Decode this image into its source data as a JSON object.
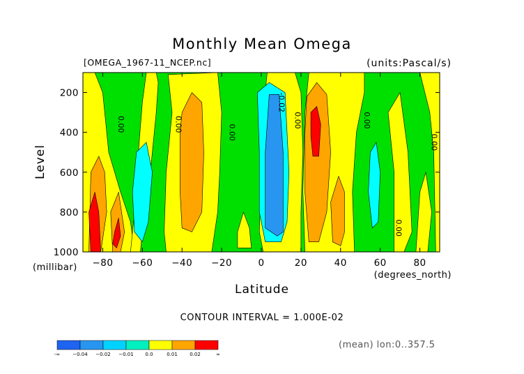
{
  "chart_data": {
    "type": "heatmap",
    "title": "Monthly Mean Omega",
    "file_label": "[OMEGA_1967-11_NCEP.nc]",
    "units_label": "(units:Pascal/s)",
    "xlabel": "Latitude",
    "x_unit": "(degrees_north)",
    "ylabel": "Level",
    "y_unit": "(millibar)",
    "xlim": [
      -90,
      90
    ],
    "ylim": [
      1000,
      100
    ],
    "x_ticks": [
      -80,
      -60,
      -40,
      -20,
      0,
      20,
      40,
      60,
      80
    ],
    "x_tick_labels": [
      "−80",
      "−60",
      "−40",
      "−20",
      "0",
      "20",
      "40",
      "60",
      "80"
    ],
    "y_ticks": [
      200,
      400,
      600,
      800,
      1000
    ],
    "y_tick_labels": [
      "200",
      "400",
      "600",
      "800",
      "1000"
    ],
    "contour_interval_text": "CONTOUR INTERVAL = 1.000E-02",
    "mean_text": "(mean) lon:0..357.5",
    "contour_labels": [
      {
        "text": "0.00",
        "x": -72,
        "y": 360
      },
      {
        "text": "0.00",
        "x": -43,
        "y": 360
      },
      {
        "text": "0.00",
        "x": -16,
        "y": 400
      },
      {
        "text": "-0.02",
        "x": 9,
        "y": 250
      },
      {
        "text": "0.00",
        "x": 17,
        "y": 340
      },
      {
        "text": "0.00",
        "x": 52,
        "y": 340
      },
      {
        "text": "0.00",
        "x": 68,
        "y": 880
      },
      {
        "text": "0.00",
        "x": 86,
        "y": 450
      }
    ],
    "legend": {
      "labels": [
        "-∞",
        "−0.04",
        "−0.02",
        "−0.01",
        "0.0",
        "0.01",
        "0.02",
        "∞"
      ],
      "colors": [
        "#1e64f0",
        "#2896f0",
        "#00d2ff",
        "#00f0c0",
        "#ffff00",
        "#ffa500",
        "#ff0000"
      ]
    },
    "colors": {
      "deep_blue": "#1e64f0",
      "blue": "#2896f0",
      "cyan": "#00ffff",
      "green": "#00e000",
      "yellow": "#ffff00",
      "orange": "#ffa500",
      "red": "#ff0000"
    },
    "regions": [
      {
        "color": "green",
        "points": [
          [
            -90,
            100
          ],
          [
            90,
            100
          ],
          [
            90,
            1000
          ],
          [
            -90,
            1000
          ]
        ]
      },
      {
        "color": "yellow",
        "points": [
          [
            -90,
            100
          ],
          [
            -84,
            100
          ],
          [
            -80,
            200
          ],
          [
            -77,
            500
          ],
          [
            -71,
            700
          ],
          [
            -66,
            850
          ],
          [
            -64,
            1000
          ],
          [
            -90,
            1000
          ]
        ]
      },
      {
        "color": "yellow",
        "points": [
          [
            -58,
            100
          ],
          [
            -53,
            100
          ],
          [
            -52,
            150
          ],
          [
            -53,
            300
          ],
          [
            -55,
            500
          ],
          [
            -57,
            700
          ],
          [
            -60,
            900
          ],
          [
            -61,
            1000
          ],
          [
            -66,
            1000
          ],
          [
            -64,
            800
          ],
          [
            -62,
            500
          ],
          [
            -60,
            250
          ]
        ]
      },
      {
        "color": "yellow",
        "points": [
          [
            -47,
            110
          ],
          [
            -22,
            100
          ],
          [
            -20,
            300
          ],
          [
            -21,
            600
          ],
          [
            -22,
            800
          ],
          [
            -25,
            1000
          ],
          [
            -48,
            1000
          ],
          [
            -49,
            900
          ],
          [
            -48,
            600
          ],
          [
            -45,
            300
          ]
        ]
      },
      {
        "color": "yellow",
        "points": [
          [
            -9,
            800
          ],
          [
            -6,
            880
          ],
          [
            -5,
            980
          ],
          [
            -12,
            980
          ],
          [
            -12,
            900
          ]
        ]
      },
      {
        "color": "yellow",
        "points": [
          [
            3,
            100
          ],
          [
            17,
            100
          ],
          [
            20,
            200
          ],
          [
            21,
            500
          ],
          [
            20,
            800
          ],
          [
            20,
            1000
          ],
          [
            1,
            1000
          ],
          [
            -1,
            900
          ],
          [
            0,
            600
          ],
          [
            1,
            300
          ]
        ]
      },
      {
        "color": "yellow",
        "points": [
          [
            24,
            100
          ],
          [
            52,
            100
          ],
          [
            52,
            200
          ],
          [
            48,
            400
          ],
          [
            46,
            700
          ],
          [
            47,
            1000
          ],
          [
            22,
            1000
          ],
          [
            21,
            700
          ],
          [
            22,
            300
          ]
        ]
      },
      {
        "color": "yellow",
        "points": [
          [
            64,
            300
          ],
          [
            70,
            200
          ],
          [
            74,
            500
          ],
          [
            76,
            900
          ],
          [
            72,
            1000
          ],
          [
            67,
            1000
          ],
          [
            67,
            600
          ]
        ]
      },
      {
        "color": "yellow",
        "points": [
          [
            80,
            700
          ],
          [
            83,
            600
          ],
          [
            86,
            800
          ],
          [
            84,
            1000
          ],
          [
            78,
            1000
          ]
        ]
      },
      {
        "color": "yellow",
        "points": [
          [
            80,
            100
          ],
          [
            90,
            100
          ],
          [
            90,
            1000
          ],
          [
            88,
            1000
          ],
          [
            87,
            500
          ],
          [
            85,
            300
          ]
        ]
      },
      {
        "color": "orange",
        "points": [
          [
            -86,
            600
          ],
          [
            -82,
            520
          ],
          [
            -79,
            600
          ],
          [
            -78,
            800
          ],
          [
            -81,
            1000
          ],
          [
            -87,
            1000
          ]
        ]
      },
      {
        "color": "orange",
        "points": [
          [
            -76,
            800
          ],
          [
            -72,
            700
          ],
          [
            -69,
            900
          ],
          [
            -71,
            1000
          ],
          [
            -75,
            1000
          ]
        ]
      },
      {
        "color": "orange",
        "points": [
          [
            -40,
            300
          ],
          [
            -35,
            200
          ],
          [
            -30,
            250
          ],
          [
            -29,
            500
          ],
          [
            -30,
            800
          ],
          [
            -35,
            900
          ],
          [
            -40,
            880
          ],
          [
            -41,
            700
          ],
          [
            -41,
            400
          ]
        ]
      },
      {
        "color": "orange",
        "points": [
          [
            23,
            220
          ],
          [
            28,
            150
          ],
          [
            33,
            210
          ],
          [
            35,
            500
          ],
          [
            33,
            800
          ],
          [
            29,
            950
          ],
          [
            24,
            950
          ],
          [
            22,
            700
          ],
          [
            22,
            400
          ]
        ]
      },
      {
        "color": "orange",
        "points": [
          [
            35,
            750
          ],
          [
            39,
            620
          ],
          [
            42,
            700
          ],
          [
            42,
            900
          ],
          [
            40,
            970
          ],
          [
            36,
            950
          ]
        ]
      },
      {
        "color": "cyan",
        "points": [
          [
            -63,
            500
          ],
          [
            -58,
            450
          ],
          [
            -55,
            600
          ],
          [
            -57,
            850
          ],
          [
            -60,
            950
          ],
          [
            -64,
            900
          ],
          [
            -65,
            700
          ]
        ]
      },
      {
        "color": "cyan",
        "points": [
          [
            -2,
            200
          ],
          [
            4,
            150
          ],
          [
            12,
            200
          ],
          [
            14,
            600
          ],
          [
            13,
            850
          ],
          [
            10,
            950
          ],
          [
            2,
            950
          ],
          [
            -1,
            800
          ],
          [
            -1,
            500
          ]
        ]
      },
      {
        "color": "cyan",
        "points": [
          [
            55,
            500
          ],
          [
            58,
            450
          ],
          [
            60,
            600
          ],
          [
            59,
            850
          ],
          [
            56,
            880
          ],
          [
            54,
            700
          ]
        ]
      },
      {
        "color": "blue",
        "points": [
          [
            4,
            210
          ],
          [
            9,
            210
          ],
          [
            11,
            500
          ],
          [
            11,
            900
          ],
          [
            8,
            920
          ],
          [
            2,
            880
          ],
          [
            2,
            500
          ]
        ]
      },
      {
        "color": "red",
        "points": [
          [
            -87,
            800
          ],
          [
            -84,
            700
          ],
          [
            -82,
            800
          ],
          [
            -81,
            1000
          ],
          [
            -86,
            1000
          ]
        ]
      },
      {
        "color": "red",
        "points": [
          [
            -74,
            900
          ],
          [
            -72,
            830
          ],
          [
            -71,
            920
          ],
          [
            -73,
            980
          ],
          [
            -75,
            960
          ]
        ]
      },
      {
        "color": "red",
        "points": [
          [
            25,
            300
          ],
          [
            28,
            270
          ],
          [
            30,
            360
          ],
          [
            29,
            520
          ],
          [
            26,
            520
          ],
          [
            25,
            420
          ]
        ]
      }
    ]
  }
}
